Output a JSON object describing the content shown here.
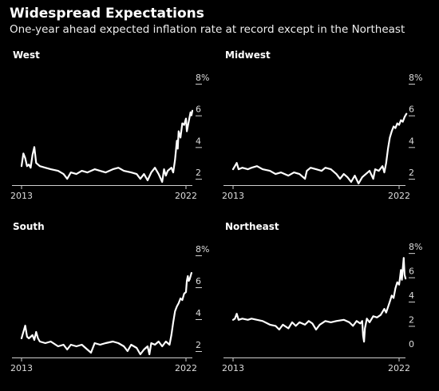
{
  "header": {
    "title": "Widespread Expectations",
    "subtitle": "One-year ahead expected inflation rate at record except in the Northeast"
  },
  "chart_data": [
    {
      "type": "line",
      "title": "West",
      "x_labels": [
        "2013",
        "2022"
      ],
      "x_range": [
        2013,
        2022
      ],
      "y_ticks": [
        "2",
        "4",
        "6",
        "8%"
      ],
      "y_range": [
        1.6,
        8.6
      ],
      "series": [
        {
          "values": [
            [
              2013.0,
              2.8
            ],
            [
              2013.1,
              3.6
            ],
            [
              2013.2,
              3.3
            ],
            [
              2013.3,
              2.8
            ],
            [
              2013.4,
              2.9
            ],
            [
              2013.5,
              2.7
            ],
            [
              2013.6,
              3.5
            ],
            [
              2013.7,
              4.0
            ],
            [
              2013.8,
              3.0
            ],
            [
              2014.0,
              2.8
            ],
            [
              2014.3,
              2.7
            ],
            [
              2014.6,
              2.6
            ],
            [
              2015.0,
              2.5
            ],
            [
              2015.3,
              2.3
            ],
            [
              2015.5,
              2.0
            ],
            [
              2015.7,
              2.4
            ],
            [
              2016.0,
              2.3
            ],
            [
              2016.3,
              2.5
            ],
            [
              2016.6,
              2.4
            ],
            [
              2017.0,
              2.6
            ],
            [
              2017.3,
              2.5
            ],
            [
              2017.6,
              2.4
            ],
            [
              2018.0,
              2.6
            ],
            [
              2018.3,
              2.7
            ],
            [
              2018.6,
              2.5
            ],
            [
              2019.0,
              2.4
            ],
            [
              2019.3,
              2.3
            ],
            [
              2019.5,
              2.0
            ],
            [
              2019.7,
              2.3
            ],
            [
              2019.9,
              1.9
            ],
            [
              2020.1,
              2.4
            ],
            [
              2020.3,
              2.7
            ],
            [
              2020.5,
              2.3
            ],
            [
              2020.7,
              1.8
            ],
            [
              2020.8,
              2.6
            ],
            [
              2020.9,
              2.2
            ],
            [
              2021.0,
              2.5
            ],
            [
              2021.2,
              2.7
            ],
            [
              2021.3,
              2.4
            ],
            [
              2021.4,
              3.2
            ],
            [
              2021.5,
              4.4
            ],
            [
              2021.55,
              3.9
            ],
            [
              2021.6,
              5.0
            ],
            [
              2021.7,
              4.6
            ],
            [
              2021.8,
              5.5
            ],
            [
              2021.9,
              5.4
            ],
            [
              2022.0,
              5.8
            ],
            [
              2022.05,
              5.0
            ],
            [
              2022.15,
              5.6
            ],
            [
              2022.25,
              6.2
            ],
            [
              2022.3,
              6.0
            ],
            [
              2022.35,
              6.3
            ]
          ]
        }
      ]
    },
    {
      "type": "line",
      "title": "Midwest",
      "x_labels": [
        "2013",
        "2022"
      ],
      "x_range": [
        2013,
        2022
      ],
      "y_ticks": [
        "2",
        "4",
        "6",
        "8%"
      ],
      "y_range": [
        1.6,
        8.6
      ],
      "series": [
        {
          "values": [
            [
              2013.0,
              2.6
            ],
            [
              2013.1,
              2.8
            ],
            [
              2013.2,
              3.0
            ],
            [
              2013.3,
              2.6
            ],
            [
              2013.5,
              2.7
            ],
            [
              2013.8,
              2.6
            ],
            [
              2014.0,
              2.7
            ],
            [
              2014.3,
              2.8
            ],
            [
              2014.6,
              2.6
            ],
            [
              2015.0,
              2.5
            ],
            [
              2015.3,
              2.3
            ],
            [
              2015.6,
              2.4
            ],
            [
              2016.0,
              2.2
            ],
            [
              2016.3,
              2.4
            ],
            [
              2016.6,
              2.3
            ],
            [
              2016.9,
              2.0
            ],
            [
              2017.0,
              2.5
            ],
            [
              2017.2,
              2.7
            ],
            [
              2017.5,
              2.6
            ],
            [
              2017.8,
              2.5
            ],
            [
              2018.0,
              2.7
            ],
            [
              2018.3,
              2.6
            ],
            [
              2018.6,
              2.3
            ],
            [
              2018.8,
              2.0
            ],
            [
              2019.0,
              2.3
            ],
            [
              2019.2,
              2.1
            ],
            [
              2019.4,
              1.8
            ],
            [
              2019.6,
              2.2
            ],
            [
              2019.8,
              1.7
            ],
            [
              2020.0,
              2.1
            ],
            [
              2020.2,
              2.3
            ],
            [
              2020.4,
              2.5
            ],
            [
              2020.6,
              2.0
            ],
            [
              2020.7,
              2.6
            ],
            [
              2020.9,
              2.5
            ],
            [
              2021.1,
              2.8
            ],
            [
              2021.2,
              2.4
            ],
            [
              2021.3,
              3.0
            ],
            [
              2021.4,
              3.9
            ],
            [
              2021.5,
              4.6
            ],
            [
              2021.6,
              5.0
            ],
            [
              2021.7,
              5.3
            ],
            [
              2021.8,
              5.2
            ],
            [
              2021.9,
              5.5
            ],
            [
              2022.0,
              5.4
            ],
            [
              2022.1,
              5.7
            ],
            [
              2022.2,
              5.6
            ],
            [
              2022.3,
              5.9
            ],
            [
              2022.4,
              6.1
            ]
          ]
        }
      ]
    },
    {
      "type": "line",
      "title": "South",
      "x_labels": [
        "2013",
        "2022"
      ],
      "x_range": [
        2013,
        2022
      ],
      "y_ticks": [
        "2",
        "4",
        "6",
        "8%"
      ],
      "y_range": [
        1.6,
        8.6
      ],
      "series": [
        {
          "values": [
            [
              2013.0,
              2.8
            ],
            [
              2013.1,
              3.2
            ],
            [
              2013.2,
              3.6
            ],
            [
              2013.3,
              2.9
            ],
            [
              2013.4,
              2.8
            ],
            [
              2013.6,
              3.0
            ],
            [
              2013.7,
              2.7
            ],
            [
              2013.8,
              3.2
            ],
            [
              2013.9,
              2.8
            ],
            [
              2014.0,
              2.6
            ],
            [
              2014.3,
              2.5
            ],
            [
              2014.6,
              2.6
            ],
            [
              2015.0,
              2.3
            ],
            [
              2015.3,
              2.4
            ],
            [
              2015.5,
              2.1
            ],
            [
              2015.7,
              2.4
            ],
            [
              2016.0,
              2.3
            ],
            [
              2016.3,
              2.4
            ],
            [
              2016.6,
              2.1
            ],
            [
              2016.8,
              1.9
            ],
            [
              2017.0,
              2.5
            ],
            [
              2017.3,
              2.4
            ],
            [
              2017.6,
              2.5
            ],
            [
              2018.0,
              2.6
            ],
            [
              2018.3,
              2.5
            ],
            [
              2018.6,
              2.3
            ],
            [
              2018.8,
              2.0
            ],
            [
              2019.0,
              2.4
            ],
            [
              2019.3,
              2.2
            ],
            [
              2019.5,
              1.8
            ],
            [
              2019.7,
              2.1
            ],
            [
              2019.9,
              2.3
            ],
            [
              2020.0,
              1.8
            ],
            [
              2020.1,
              2.5
            ],
            [
              2020.3,
              2.4
            ],
            [
              2020.5,
              2.6
            ],
            [
              2020.7,
              2.3
            ],
            [
              2020.9,
              2.6
            ],
            [
              2021.1,
              2.4
            ],
            [
              2021.2,
              3.0
            ],
            [
              2021.3,
              3.8
            ],
            [
              2021.4,
              4.5
            ],
            [
              2021.5,
              4.8
            ],
            [
              2021.6,
              5.0
            ],
            [
              2021.7,
              5.3
            ],
            [
              2021.8,
              5.2
            ],
            [
              2021.9,
              5.6
            ],
            [
              2022.0,
              5.7
            ],
            [
              2022.05,
              6.4
            ],
            [
              2022.1,
              6.7
            ],
            [
              2022.15,
              6.4
            ],
            [
              2022.2,
              6.5
            ],
            [
              2022.3,
              6.9
            ]
          ]
        }
      ]
    },
    {
      "type": "line",
      "title": "Northeast",
      "x_labels": [
        "2013",
        "2022"
      ],
      "x_range": [
        2013,
        2022
      ],
      "y_ticks": [
        "0",
        "2",
        "4",
        "6",
        "8%"
      ],
      "y_range": [
        -0.6,
        8.6
      ],
      "series": [
        {
          "values": [
            [
              2013.0,
              2.5
            ],
            [
              2013.1,
              2.6
            ],
            [
              2013.2,
              3.0
            ],
            [
              2013.3,
              2.5
            ],
            [
              2013.5,
              2.6
            ],
            [
              2013.8,
              2.5
            ],
            [
              2014.0,
              2.6
            ],
            [
              2014.3,
              2.5
            ],
            [
              2014.6,
              2.4
            ],
            [
              2015.0,
              2.1
            ],
            [
              2015.3,
              2.0
            ],
            [
              2015.5,
              1.7
            ],
            [
              2015.7,
              2.1
            ],
            [
              2016.0,
              1.8
            ],
            [
              2016.2,
              2.3
            ],
            [
              2016.4,
              2.0
            ],
            [
              2016.6,
              2.3
            ],
            [
              2016.9,
              2.1
            ],
            [
              2017.1,
              2.4
            ],
            [
              2017.3,
              2.2
            ],
            [
              2017.5,
              1.7
            ],
            [
              2017.7,
              2.1
            ],
            [
              2018.0,
              2.4
            ],
            [
              2018.3,
              2.3
            ],
            [
              2018.6,
              2.4
            ],
            [
              2019.0,
              2.5
            ],
            [
              2019.3,
              2.3
            ],
            [
              2019.5,
              2.0
            ],
            [
              2019.7,
              2.4
            ],
            [
              2019.9,
              2.2
            ],
            [
              2020.0,
              2.4
            ],
            [
              2020.05,
              1.2
            ],
            [
              2020.1,
              0.7
            ],
            [
              2020.15,
              1.8
            ],
            [
              2020.25,
              2.6
            ],
            [
              2020.4,
              2.3
            ],
            [
              2020.6,
              2.8
            ],
            [
              2020.8,
              2.7
            ],
            [
              2021.0,
              2.9
            ],
            [
              2021.2,
              3.4
            ],
            [
              2021.3,
              3.1
            ],
            [
              2021.5,
              4.0
            ],
            [
              2021.6,
              4.5
            ],
            [
              2021.7,
              4.3
            ],
            [
              2021.8,
              5.1
            ],
            [
              2021.9,
              5.6
            ],
            [
              2022.0,
              5.4
            ],
            [
              2022.05,
              6.0
            ],
            [
              2022.1,
              6.6
            ],
            [
              2022.15,
              5.8
            ],
            [
              2022.2,
              6.7
            ],
            [
              2022.25,
              7.6
            ],
            [
              2022.3,
              6.2
            ],
            [
              2022.35,
              5.9
            ]
          ]
        }
      ]
    }
  ]
}
